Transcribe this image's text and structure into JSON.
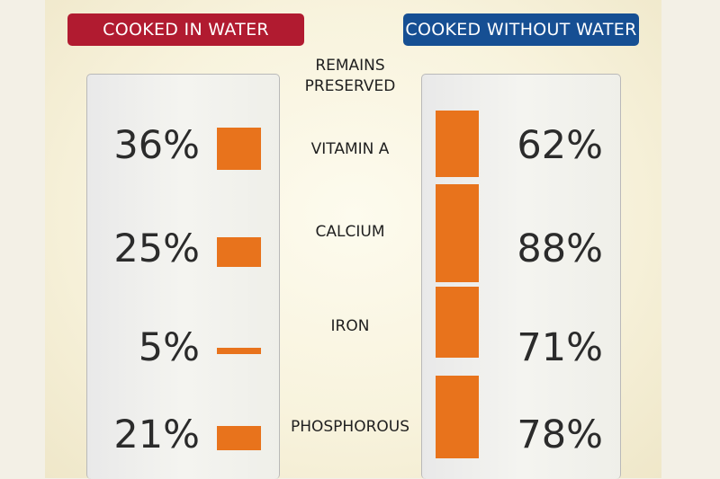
{
  "headers": {
    "left": "COOKED IN WATER",
    "right": "COOKED WITHOUT WATER"
  },
  "column_title": "REMAINS PRESERVED",
  "colors": {
    "bar": "#e8731c",
    "left_header": "#b11b30",
    "right_header": "#164f93"
  },
  "chart_data": {
    "type": "bar",
    "title": "REMAINS PRESERVED",
    "categories": [
      "VITAMIN A",
      "CALCIUM",
      "IRON",
      "PHOSPHOROUS"
    ],
    "series": [
      {
        "name": "COOKED IN WATER",
        "values": [
          36,
          25,
          5,
          21
        ],
        "labels": [
          "36%",
          "25%",
          "5%",
          "21%"
        ]
      },
      {
        "name": "COOKED WITHOUT WATER",
        "values": [
          62,
          88,
          71,
          78
        ],
        "labels": [
          "62%",
          "88%",
          "71%",
          "78%"
        ]
      }
    ],
    "unit": "%"
  }
}
